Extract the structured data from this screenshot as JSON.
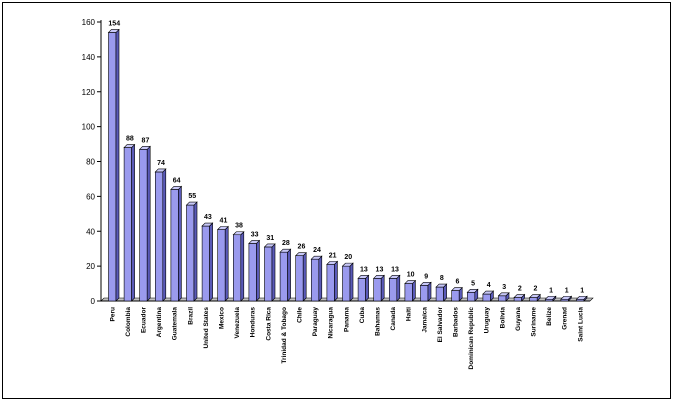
{
  "chart_data": {
    "type": "bar",
    "title": "",
    "xlabel": "",
    "ylabel": "",
    "ylim": [
      0,
      160
    ],
    "yticks": [
      0,
      20,
      40,
      60,
      80,
      100,
      120,
      140,
      160
    ],
    "grid": false,
    "legend": "none",
    "categories": [
      "Peru",
      "Colombia",
      "Ecuador",
      "Argentina",
      "Guatemala",
      "Brazil",
      "United States",
      "Mexico",
      "Venezuela",
      "Honduras",
      "Costa Rica",
      "Trinidad & Tobago",
      "Chile",
      "Paraguay",
      "Nicaragua",
      "Panama",
      "Cuba",
      "Bahamas",
      "Canada",
      "Haiti",
      "Jamaica",
      "El Salvador",
      "Barbados",
      "Dominican Republic",
      "Uruguay",
      "Bolivia",
      "Guyana",
      "Suriname",
      "Belize",
      "Grenad",
      "Saint Lucia"
    ],
    "values": [
      154,
      88,
      87,
      74,
      64,
      55,
      43,
      41,
      38,
      33,
      31,
      28,
      26,
      24,
      21,
      20,
      13,
      13,
      13,
      10,
      9,
      8,
      6,
      5,
      4,
      3,
      2,
      2,
      1,
      1,
      1
    ],
    "data_labels": [
      "154",
      "88",
      "87",
      "74",
      "64",
      "55",
      "43",
      "41",
      "38",
      "33",
      "31",
      "28",
      "26",
      "24",
      "21",
      "20",
      "13",
      "13",
      "13",
      "10",
      "9",
      "8",
      "6",
      "5",
      "4",
      "3",
      "2",
      "2",
      "1",
      "1",
      "1"
    ],
    "colors": {
      "bar_front": "#9a9aee",
      "bar_top": "#c8c8f8",
      "bar_side": "#5a5ab8",
      "floor": "#c0c0c0",
      "axis": "#000000"
    }
  }
}
